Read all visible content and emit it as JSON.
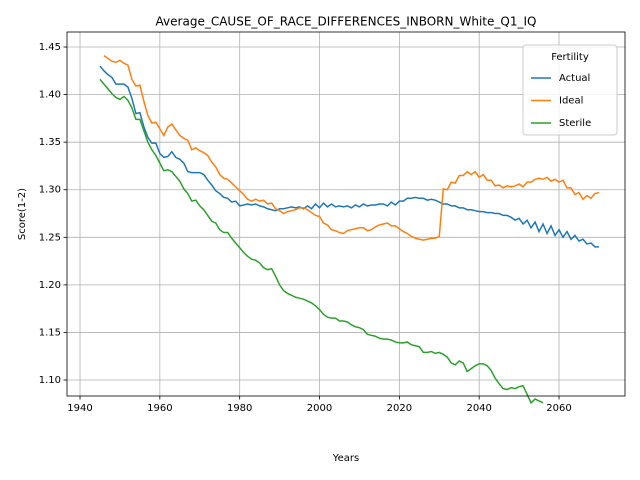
{
  "chart_data": {
    "type": "line",
    "title": "Average_CAUSE_OF_RACE_DIFFERENCES_INBORN_White_Q1_IQ",
    "x_label": "Years",
    "y_label": "Score(1-2)",
    "legend_title": "Fertility",
    "legend": "upper right",
    "grid": true,
    "xlim": [
      1936.74,
      2076.53
    ],
    "ylim": [
      1.0832,
      1.4658
    ],
    "xticks": [
      1940,
      1960,
      1980,
      2000,
      2020,
      2040,
      2060
    ],
    "yticks": [
      {
        "value": 1.1,
        "label": "1.10"
      },
      1.15,
      {
        "value": 1.2,
        "label": "1.20"
      },
      1.25,
      {
        "value": 1.3,
        "label": "1.30"
      },
      1.35,
      {
        "value": 1.4,
        "label": "1.40"
      },
      1.45
    ],
    "x": [
      1945,
      1946,
      1947,
      1948,
      1949,
      1950,
      1951,
      1952,
      1953,
      1954,
      1955,
      1956,
      1957,
      1958,
      1959,
      1960,
      1961,
      1962,
      1963,
      1964,
      1965,
      1966,
      1967,
      1968,
      1969,
      1970,
      1971,
      1972,
      1973,
      1974,
      1975,
      1976,
      1977,
      1978,
      1979,
      1980,
      1981,
      1982,
      1983,
      1984,
      1985,
      1986,
      1987,
      1988,
      1989,
      1990,
      1991,
      1992,
      1993,
      1994,
      1995,
      1996,
      1997,
      1998,
      1999,
      2000,
      2001,
      2002,
      2003,
      2004,
      2005,
      2006,
      2007,
      2008,
      2009,
      2010,
      2011,
      2012,
      2013,
      2014,
      2015,
      2016,
      2017,
      2018,
      2019,
      2020,
      2021,
      2022,
      2023,
      2024,
      2025,
      2026,
      2027,
      2028,
      2029,
      2030,
      2031,
      2032,
      2033,
      2034,
      2035,
      2036,
      2037,
      2038,
      2039,
      2040,
      2041,
      2042,
      2043,
      2044,
      2045,
      2046,
      2047,
      2048,
      2049,
      2050,
      2051,
      2052,
      2053,
      2054,
      2055,
      2056,
      2057,
      2058,
      2059,
      2060,
      2061,
      2062,
      2063,
      2064,
      2065,
      2066,
      2067,
      2068,
      2069,
      2070
    ],
    "series": [
      {
        "name": "Actual",
        "color": "#1f77b4",
        "values": [
          1.43,
          1.425,
          1.421,
          1.418,
          1.411,
          1.411,
          1.411,
          1.408,
          1.396,
          1.38,
          1.381,
          1.366,
          1.355,
          1.349,
          1.349,
          1.338,
          1.334,
          1.335,
          1.34,
          1.334,
          1.332,
          1.328,
          1.319,
          1.318,
          1.318,
          1.318,
          1.316,
          1.31,
          1.305,
          1.299,
          1.296,
          1.292,
          1.291,
          1.287,
          1.288,
          1.283,
          1.284,
          1.285,
          1.284,
          1.285,
          1.283,
          1.282,
          1.28,
          1.279,
          1.278,
          1.28,
          1.28,
          1.281,
          1.282,
          1.281,
          1.282,
          1.28,
          1.283,
          1.28,
          1.285,
          1.281,
          1.286,
          1.282,
          1.285,
          1.282,
          1.283,
          1.282,
          1.283,
          1.281,
          1.284,
          1.282,
          1.285,
          1.283,
          1.284,
          1.284,
          1.285,
          1.285,
          1.283,
          1.287,
          1.284,
          1.288,
          1.288,
          1.291,
          1.291,
          1.292,
          1.291,
          1.291,
          1.289,
          1.29,
          1.289,
          1.287,
          1.285,
          1.285,
          1.283,
          1.283,
          1.281,
          1.281,
          1.279,
          1.279,
          1.278,
          1.277,
          1.277,
          1.276,
          1.276,
          1.275,
          1.275,
          1.273,
          1.273,
          1.271,
          1.268,
          1.27,
          1.264,
          1.268,
          1.26,
          1.266,
          1.256,
          1.264,
          1.254,
          1.262,
          1.252,
          1.258,
          1.25,
          1.256,
          1.248,
          1.252,
          1.246,
          1.248,
          1.243,
          1.244,
          1.24,
          1.24
        ]
      },
      {
        "name": "Ideal",
        "color": "#ff7f0e",
        "values": [
          null,
          1.441,
          1.438,
          1.435,
          1.434,
          1.436,
          1.433,
          1.431,
          1.416,
          1.409,
          1.41,
          1.393,
          1.378,
          1.37,
          1.371,
          1.364,
          1.357,
          1.366,
          1.369,
          1.363,
          1.357,
          1.354,
          1.352,
          1.342,
          1.344,
          1.341,
          1.339,
          1.336,
          1.329,
          1.324,
          1.316,
          1.312,
          1.311,
          1.307,
          1.303,
          1.299,
          1.295,
          1.29,
          1.288,
          1.29,
          1.288,
          1.289,
          1.285,
          1.286,
          1.28,
          1.278,
          1.275,
          1.277,
          1.278,
          1.279,
          1.281,
          1.281,
          1.279,
          1.276,
          1.273,
          1.272,
          1.265,
          1.263,
          1.258,
          1.257,
          1.255,
          1.254,
          1.257,
          1.258,
          1.259,
          1.26,
          1.26,
          1.257,
          1.258,
          1.261,
          1.263,
          1.264,
          1.265,
          1.262,
          1.262,
          1.259,
          1.256,
          1.254,
          1.251,
          1.249,
          1.248,
          1.247,
          1.248,
          1.249,
          1.249,
          1.251,
          1.301,
          1.3,
          1.308,
          1.307,
          1.315,
          1.315,
          1.319,
          1.316,
          1.319,
          1.313,
          1.316,
          1.31,
          1.31,
          1.304,
          1.305,
          1.302,
          1.304,
          1.303,
          1.304,
          1.306,
          1.303,
          1.308,
          1.308,
          1.311,
          1.312,
          1.311,
          1.313,
          1.309,
          1.311,
          1.308,
          1.31,
          1.302,
          1.302,
          1.295,
          1.297,
          1.29,
          1.294,
          1.291,
          1.296,
          1.297
        ]
      },
      {
        "name": "Sterile",
        "color": "#2ca02c",
        "values": [
          1.416,
          1.411,
          1.406,
          1.401,
          1.397,
          1.395,
          1.398,
          1.394,
          1.386,
          1.374,
          1.374,
          1.362,
          1.35,
          1.342,
          1.336,
          1.328,
          1.32,
          1.321,
          1.319,
          1.314,
          1.309,
          1.301,
          1.296,
          1.288,
          1.289,
          1.283,
          1.279,
          1.273,
          1.267,
          1.265,
          1.258,
          1.255,
          1.255,
          1.249,
          1.244,
          1.239,
          1.234,
          1.23,
          1.227,
          1.226,
          1.223,
          1.218,
          1.216,
          1.217,
          1.209,
          1.2,
          1.194,
          1.191,
          1.189,
          1.187,
          1.186,
          1.185,
          1.183,
          1.181,
          1.178,
          1.174,
          1.169,
          1.166,
          1.165,
          1.165,
          1.162,
          1.162,
          1.161,
          1.158,
          1.156,
          1.155,
          1.153,
          1.148,
          1.147,
          1.146,
          1.144,
          1.143,
          1.143,
          1.142,
          1.14,
          1.139,
          1.139,
          1.14,
          1.137,
          1.136,
          1.135,
          1.129,
          1.129,
          1.13,
          1.128,
          1.129,
          1.127,
          1.124,
          1.118,
          1.116,
          1.12,
          1.118,
          1.109,
          1.112,
          1.115,
          1.117,
          1.117,
          1.115,
          1.11,
          1.102,
          1.096,
          1.091,
          1.09,
          1.092,
          1.091,
          1.093,
          1.094,
          1.085,
          1.076,
          1.08,
          1.078,
          1.076,
          null,
          null,
          null,
          null,
          null,
          null,
          null,
          null,
          null,
          null,
          null,
          null,
          null,
          null
        ]
      }
    ]
  }
}
